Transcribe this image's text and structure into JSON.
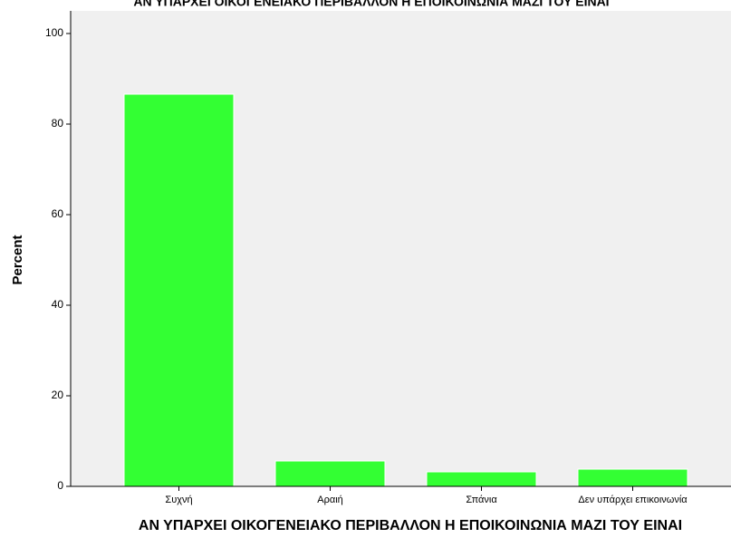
{
  "chart_data": {
    "type": "bar",
    "title": "ΑΝ ΥΠΑΡΧΕΙ ΟΙΚΟΓΕΝΕΙΑΚΟ ΠΕΡΙΒΑΛΛΟΝ Η ΕΠΟΙΚΟΙΝΩΝΙΑ ΜΑΖΙ ΤΟΥ ΕΙΝΑΙ",
    "x_label": "ΑΝ ΥΠΑΡΧΕΙ ΟΙΚΟΓΕΝΕΙΑΚΟ ΠΕΡΙΒΑΛΛΟΝ Η ΕΠΟΙΚΟΙΝΩΝΙΑ ΜΑΖΙ ΤΟΥ ΕΙΝΑΙ",
    "y_label": "Percent",
    "categories": [
      "Συχνή",
      "Αραιή",
      "Σπάνια",
      "Δεν υπάρχει επικοινωνία"
    ],
    "values": [
      86.6,
      5.6,
      3.2,
      3.8
    ],
    "color": "#33ff33",
    "ylim": [
      0,
      100
    ],
    "yticks": [
      0,
      20,
      40,
      60,
      80,
      100
    ],
    "grid": false
  }
}
